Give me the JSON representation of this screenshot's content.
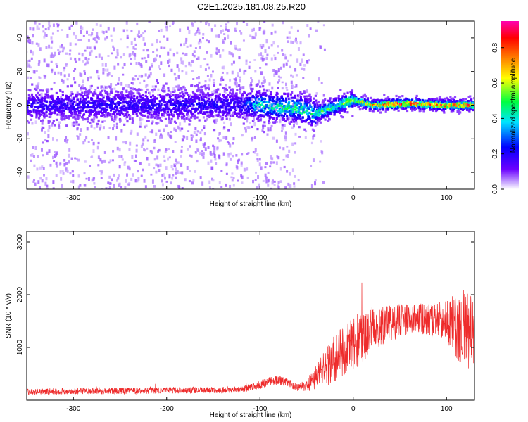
{
  "title": "C2E1.2025.181.08.25.R20",
  "colors": {
    "snr_line": "#ee2b2b",
    "scatter_bg": "#b79be8",
    "scatter_dense": "#5a00e0",
    "axis": "#000000"
  },
  "chart_data": [
    {
      "type": "heatmap",
      "xlabel": "Height of straight line (km)",
      "ylabel": "Frequency (Hz)",
      "xlim": [
        -350,
        130
      ],
      "ylim": [
        -50,
        50
      ],
      "xticks": [
        -300,
        -200,
        -100,
        0,
        100
      ],
      "yticks": [
        -40,
        -20,
        0,
        20,
        40
      ],
      "colorbar": {
        "label": "Normalized spectral amplitude",
        "range": [
          0,
          0.95
        ],
        "ticks": [
          "0.0",
          "0.2",
          "0.4",
          "0.6",
          "0.8"
        ],
        "tick_values": [
          0.0,
          0.2,
          0.4,
          0.6,
          0.8
        ],
        "colormap": "hsv"
      },
      "trend": {
        "x": [
          -350,
          -100,
          -60,
          -40,
          -20,
          0,
          20,
          60,
          100,
          130
        ],
        "y": [
          0,
          0,
          -2,
          -5,
          -1,
          3,
          0,
          1,
          0,
          0
        ]
      },
      "amplitude_profile": {
        "x": [
          -350,
          -120,
          -100,
          -60,
          -40,
          -20,
          0,
          20,
          50,
          80,
          130
        ],
        "peak": [
          0.2,
          0.22,
          0.45,
          0.5,
          0.48,
          0.55,
          0.62,
          0.75,
          0.92,
          0.88,
          0.85
        ]
      }
    },
    {
      "type": "line",
      "xlabel": "Height of straight line (km)",
      "ylabel": "SNR (10 * v/v)",
      "xlim": [
        -350,
        130
      ],
      "ylim": [
        0,
        3200
      ],
      "xticks": [
        -300,
        -200,
        -100,
        0,
        100
      ],
      "yticks": [
        1000,
        2000,
        3000
      ],
      "series": [
        {
          "envelope": {
            "x": [
              -350,
              -120,
              -100,
              -90,
              -80,
              -70,
              -60,
              -50,
              -40,
              -30,
              -20,
              -10,
              0,
              10,
              20,
              40,
              60,
              80,
              100,
              115,
              130
            ],
            "mean": [
              160,
              200,
              290,
              360,
              380,
              330,
              240,
              280,
              420,
              600,
              800,
              950,
              1050,
              1150,
              1350,
              1450,
              1550,
              1520,
              1480,
              1400,
              1300
            ],
            "spread": [
              60,
              60,
              80,
              80,
              90,
              80,
              70,
              120,
              250,
              350,
              450,
              500,
              500,
              480,
              420,
              350,
              300,
              320,
              400,
              700,
              800
            ]
          }
        }
      ]
    }
  ]
}
